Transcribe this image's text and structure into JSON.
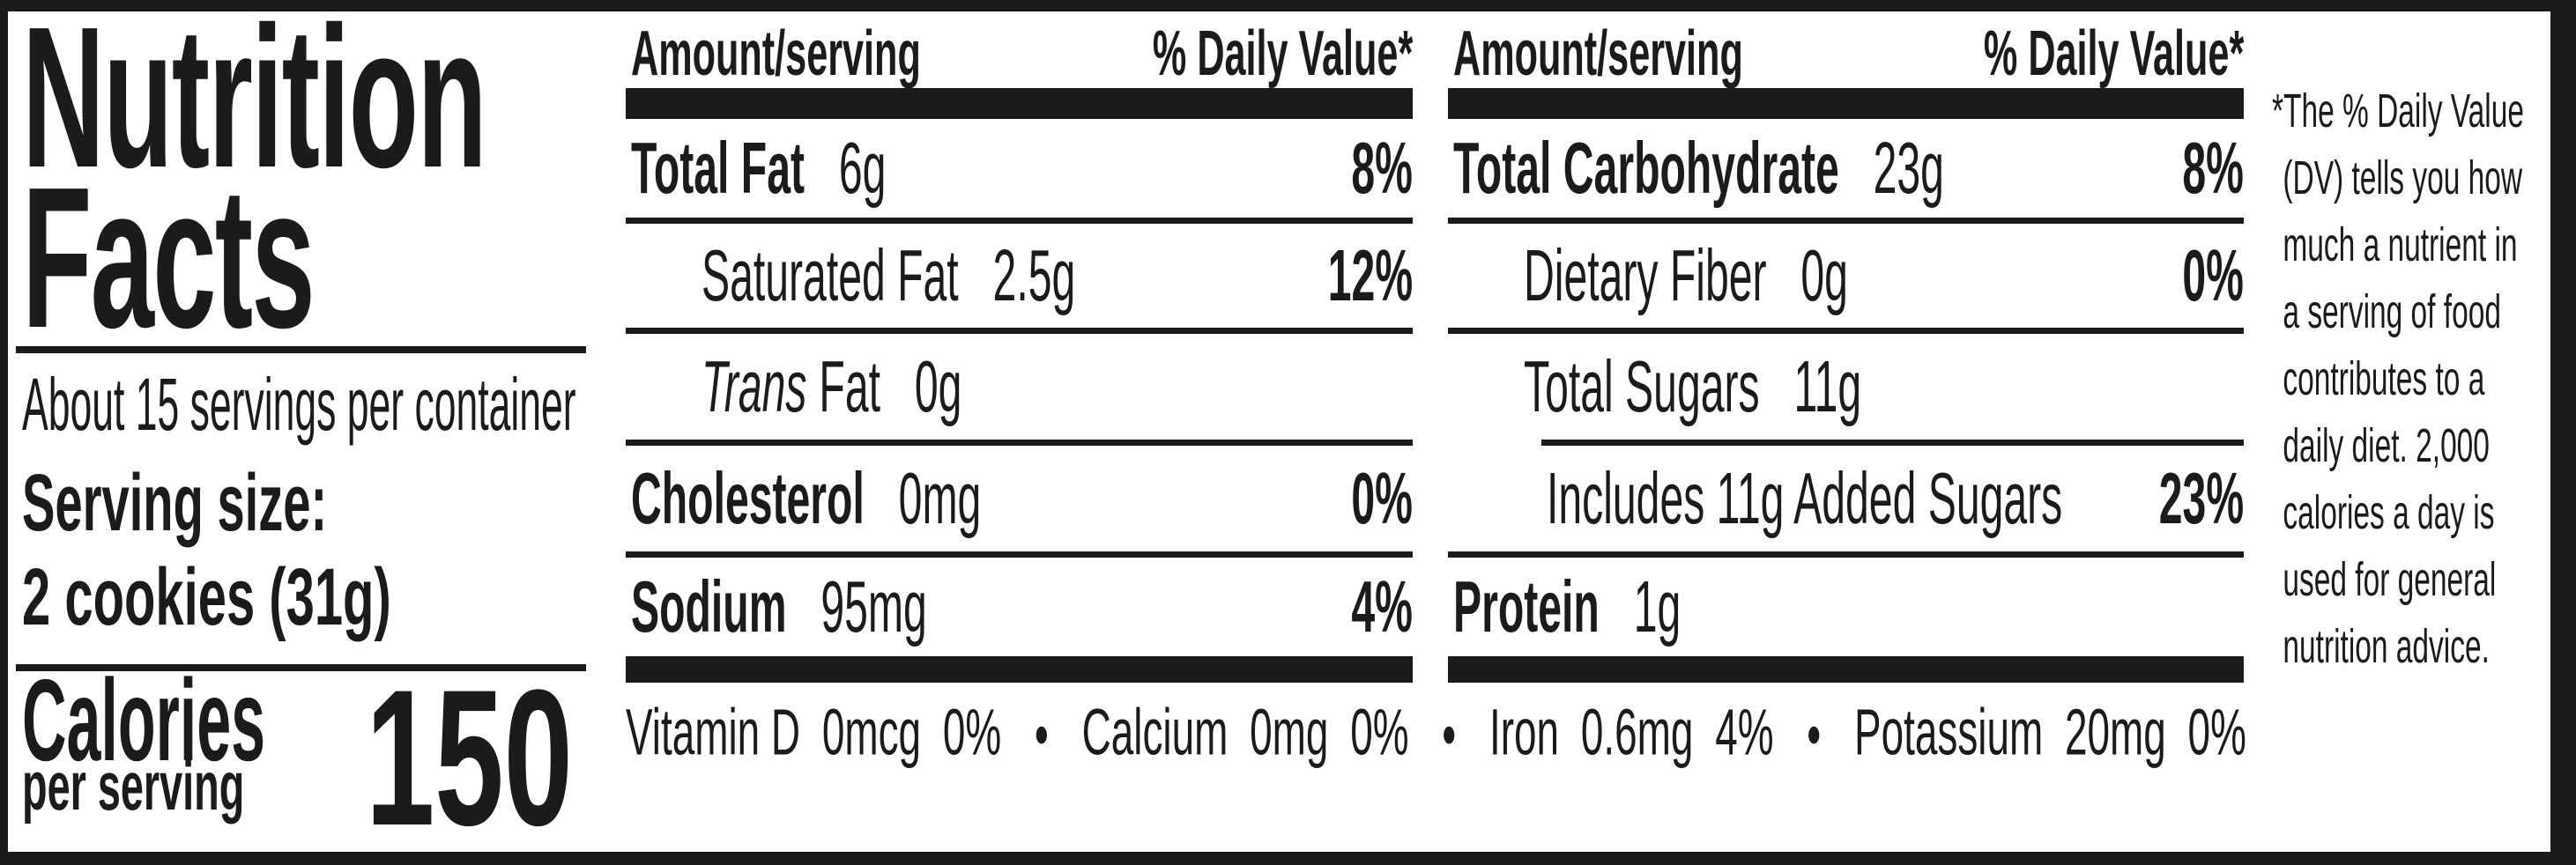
{
  "label": {
    "title_lines": [
      "Nutrition",
      "Facts"
    ],
    "servings_per_container": "About 15 servings per container",
    "serving_size_label": "Serving size:",
    "serving_size_value": "2 cookies (31g)",
    "calories": {
      "label": "Calories",
      "sublabel": "per serving",
      "value": "150"
    },
    "columns": [
      {
        "amount_header": "Amount/serving",
        "dv_header": "% Daily Value*",
        "rows": [
          {
            "name": "Total Fat",
            "amount": "6g",
            "dv": "8%"
          },
          {
            "name": "Saturated Fat",
            "amount": "2.5g",
            "dv": "12%"
          },
          {
            "name_italic": "Trans",
            "name": "Fat",
            "amount": "0g",
            "dv": ""
          },
          {
            "name": "Cholesterol",
            "amount": "0mg",
            "dv": "0%"
          },
          {
            "name": "Sodium",
            "amount": "95mg",
            "dv": "4%"
          }
        ]
      },
      {
        "amount_header": "Amount/serving",
        "dv_header": "% Daily Value*",
        "rows": [
          {
            "name": "Total Carbohydrate",
            "amount": "23g",
            "dv": "8%"
          },
          {
            "name": "Dietary Fiber",
            "amount": "0g",
            "dv": "0%"
          },
          {
            "name": "Total Sugars",
            "amount": "11g",
            "dv": ""
          },
          {
            "name": "Includes 11g Added Sugars",
            "amount": "",
            "dv": "23%"
          },
          {
            "name": "Protein",
            "amount": "1g",
            "dv": ""
          }
        ]
      }
    ],
    "micronutrients": [
      {
        "name": "Vitamin D",
        "amount": "0mcg",
        "dv": "0%"
      },
      {
        "name": "Calcium",
        "amount": "0mg",
        "dv": "0%"
      },
      {
        "name": "Iron",
        "amount": "0.6mg",
        "dv": "4%"
      },
      {
        "name": "Potassium",
        "amount": "20mg",
        "dv": "0%"
      }
    ],
    "bullet_separator": "●",
    "footnote_lines": [
      "*The % Daily Value",
      "(DV) tells you how",
      "much a nutrient in",
      "a serving of food",
      "contributes to a",
      "daily diet. 2,000",
      "calories a day is",
      "used for general",
      "nutrition advice."
    ],
    "colors": {
      "ink": "#1d1b1a",
      "background": "#ffffff"
    }
  }
}
